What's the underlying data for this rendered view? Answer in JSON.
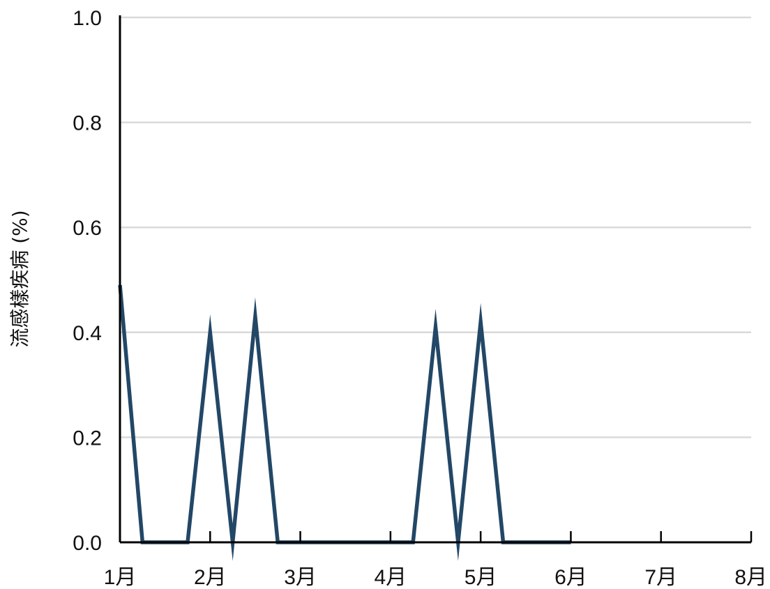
{
  "chart_data": {
    "type": "line",
    "title": "",
    "xlabel": "",
    "ylabel": "流感樣疾病 (%)",
    "x_ticks": [
      "1月",
      "2月",
      "3月",
      "4月",
      "5月",
      "6月",
      "7月",
      "8月"
    ],
    "xlim": [
      1,
      8
    ],
    "ylim": [
      0,
      1.0
    ],
    "y_ticks": [
      "0.0",
      "0.2",
      "0.4",
      "0.6",
      "0.8",
      "1.0"
    ],
    "y_tick_values": [
      0,
      0.2,
      0.4,
      0.6,
      0.8,
      1.0
    ],
    "grid": "horizontal",
    "legend": "none",
    "series": [
      {
        "color": "#234766",
        "points": [
          [
            1.0,
            0.49
          ],
          [
            1.25,
            0.0
          ],
          [
            1.75,
            0.0
          ],
          [
            2.0,
            0.4
          ],
          [
            2.25,
            0.0
          ],
          [
            2.5,
            0.43
          ],
          [
            2.75,
            0.0
          ],
          [
            3.0,
            0.0
          ],
          [
            3.25,
            0.0
          ],
          [
            3.5,
            0.0
          ],
          [
            3.75,
            0.0
          ],
          [
            4.0,
            0.0
          ],
          [
            4.25,
            0.0
          ],
          [
            4.5,
            0.41
          ],
          [
            4.75,
            0.0
          ],
          [
            5.0,
            0.42
          ],
          [
            5.25,
            0.0
          ],
          [
            5.5,
            0.0
          ],
          [
            5.75,
            0.0
          ],
          [
            6.0,
            0.0
          ]
        ]
      }
    ],
    "colors": {
      "line": "#234766",
      "grid": "#d9d9d9",
      "axis": "#000000"
    }
  }
}
